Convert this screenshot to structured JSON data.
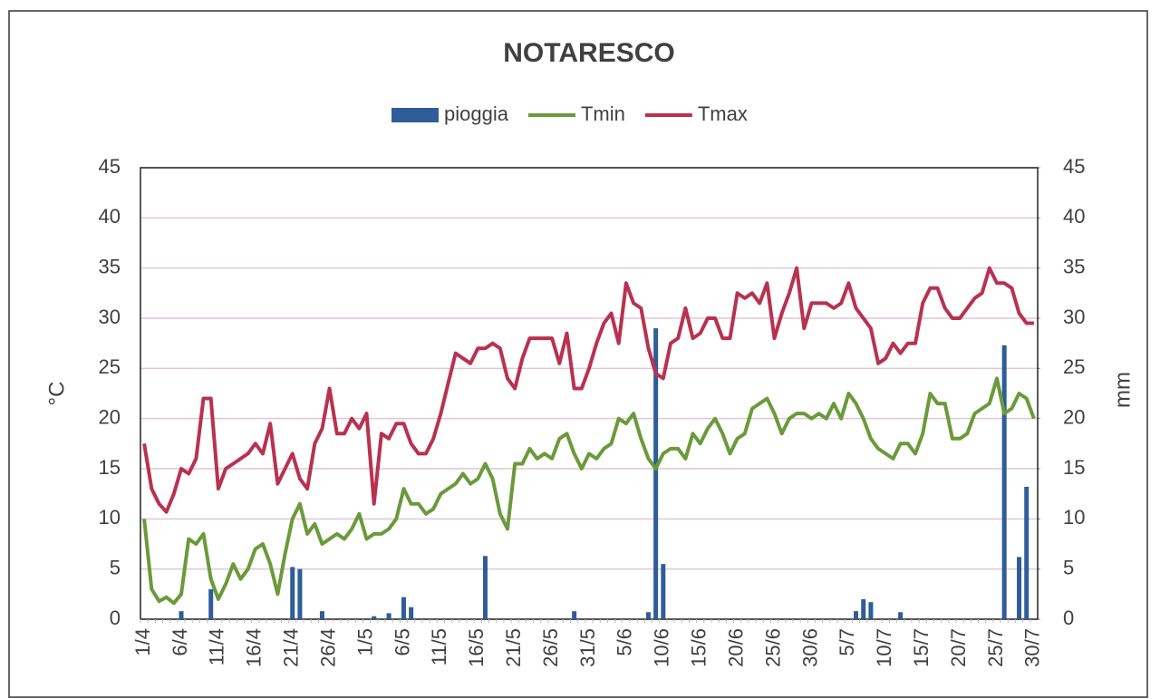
{
  "chart_data": {
    "type": "bar-line",
    "title": "NOTARESCO",
    "y_label": "°C",
    "y2_label": "mm",
    "categories": [
      "1/4",
      null,
      null,
      null,
      null,
      "6/4",
      null,
      null,
      null,
      null,
      "11/4",
      null,
      null,
      null,
      null,
      "16/4",
      null,
      null,
      null,
      null,
      "21/4",
      null,
      null,
      null,
      null,
      "26/4",
      null,
      null,
      null,
      null,
      "1/5",
      null,
      null,
      null,
      null,
      "6/5",
      null,
      null,
      null,
      null,
      "11/5",
      null,
      null,
      null,
      null,
      "16/5",
      null,
      null,
      null,
      null,
      "21/5",
      null,
      null,
      null,
      null,
      "26/5",
      null,
      null,
      null,
      null,
      "31/5",
      null,
      null,
      null,
      null,
      "5/6",
      null,
      null,
      null,
      null,
      "10/6",
      null,
      null,
      null,
      null,
      "15/6",
      null,
      null,
      null,
      null,
      "20/6",
      null,
      null,
      null,
      null,
      "25/6",
      null,
      null,
      null,
      null,
      "30/6",
      null,
      null,
      null,
      null,
      "5/7",
      null,
      null,
      null,
      null,
      "10/7",
      null,
      null,
      null,
      null,
      "15/7",
      null,
      null,
      null,
      null,
      "20/7",
      null,
      null,
      null,
      null,
      "25/7",
      null,
      null,
      null,
      null,
      "30/7"
    ],
    "series": [
      {
        "name": "pioggia",
        "type": "bar",
        "axis": "y2",
        "color": "#2e5d99",
        "values": [
          0,
          0,
          0,
          0,
          0,
          0.8,
          0,
          0,
          0,
          3,
          0,
          0,
          0,
          0,
          0,
          0,
          0,
          0,
          0,
          0,
          5.2,
          5,
          0,
          0,
          0.8,
          0,
          0,
          0,
          0,
          0,
          0,
          0.3,
          0,
          0.6,
          0,
          2.2,
          1.2,
          0,
          0,
          0,
          0,
          0,
          0,
          0,
          0,
          0,
          6.3,
          0,
          0,
          0,
          0,
          0,
          0,
          0,
          0,
          0,
          0,
          0,
          0.8,
          0,
          0,
          0,
          0,
          0,
          0,
          0,
          0,
          0,
          0.7,
          29,
          5.5,
          0,
          0,
          0,
          0,
          0,
          0,
          0,
          0,
          0,
          0,
          0,
          0,
          0,
          0,
          0,
          0,
          0,
          0,
          0,
          0,
          0,
          0,
          0,
          0,
          0,
          0.8,
          2,
          1.7,
          0,
          0,
          0,
          0.7,
          0,
          0,
          0,
          0,
          0,
          0,
          0,
          0,
          0,
          0,
          0,
          0,
          0,
          27.3,
          0,
          6.2,
          13.2,
          0
        ]
      },
      {
        "name": "Tmin",
        "type": "line",
        "color": "#6a9a3a",
        "values": [
          10,
          3,
          1.8,
          2.2,
          1.6,
          2.5,
          8,
          7.5,
          8.5,
          4,
          2,
          3.5,
          5.5,
          4,
          5,
          7,
          7.5,
          5.5,
          2.5,
          6.5,
          10,
          11.5,
          8.5,
          9.5,
          7.5,
          8,
          8.5,
          8,
          9,
          10.5,
          8,
          8.5,
          8.5,
          9,
          10,
          13,
          11.5,
          11.5,
          10.5,
          11,
          12.5,
          13,
          13.5,
          14.5,
          13.5,
          14,
          15.5,
          14,
          10.5,
          9,
          15.5,
          15.5,
          17,
          16,
          16.5,
          16,
          18,
          18.5,
          16.5,
          15,
          16.5,
          16,
          17,
          17.5,
          20,
          19.5,
          20.5,
          18,
          16,
          15,
          16.5,
          17,
          17,
          16,
          18.5,
          17.5,
          19,
          20,
          18.5,
          16.5,
          18,
          18.5,
          21,
          21.5,
          22,
          20.5,
          18.5,
          20,
          20.5,
          20.5,
          20,
          20.5,
          20,
          21.5,
          20,
          22.5,
          21.5,
          20,
          18,
          17,
          16.5,
          16,
          17.5,
          17.5,
          16.5,
          18.5,
          22.5,
          21.5,
          21.5,
          18,
          18,
          18.5,
          20.5,
          21,
          21.5,
          24,
          20.5,
          21,
          22.5,
          22,
          20
        ]
      },
      {
        "name": "Tmax",
        "type": "line",
        "color": "#b83250",
        "values": [
          17.5,
          13,
          11.5,
          10.7,
          12.5,
          15,
          14.5,
          16,
          22,
          22,
          13,
          15,
          15.5,
          16,
          16.5,
          17.5,
          16.5,
          19.5,
          13.5,
          15,
          16.5,
          14,
          13,
          17.5,
          19,
          23,
          18.5,
          18.5,
          20,
          19,
          20.5,
          11.5,
          18.5,
          18,
          19.5,
          19.5,
          17.5,
          16.5,
          16.5,
          18,
          20.5,
          23.5,
          26.5,
          26,
          25.5,
          27,
          27,
          27.5,
          27,
          24,
          23,
          26,
          28,
          28,
          28,
          28,
          25.5,
          28.5,
          23,
          23,
          25,
          27.5,
          29.5,
          30.5,
          27.5,
          33.5,
          31.5,
          31,
          27,
          24.5,
          24,
          27.5,
          28,
          31,
          28,
          28.5,
          30,
          30,
          28,
          28,
          32.5,
          32,
          32.5,
          31.5,
          33.5,
          28,
          30.5,
          32.5,
          35,
          29,
          31.5,
          31.5,
          31.5,
          31,
          31.5,
          33.5,
          31,
          30,
          29,
          25.5,
          26,
          27.5,
          26.5,
          27.5,
          27.5,
          31.5,
          33,
          33,
          31,
          30,
          30,
          31,
          32,
          32.5,
          35,
          33.5,
          33.5,
          33,
          30.5,
          29.5,
          29.5
        ]
      }
    ],
    "ylim": [
      0,
      45
    ],
    "yticks": [
      0,
      5,
      10,
      15,
      20,
      25,
      30,
      35,
      40,
      45
    ],
    "y2lim": [
      0,
      45
    ],
    "y2ticks": [
      0,
      5,
      10,
      15,
      20,
      25,
      30,
      35,
      40,
      45
    ],
    "grid": true,
    "legend": "top"
  }
}
